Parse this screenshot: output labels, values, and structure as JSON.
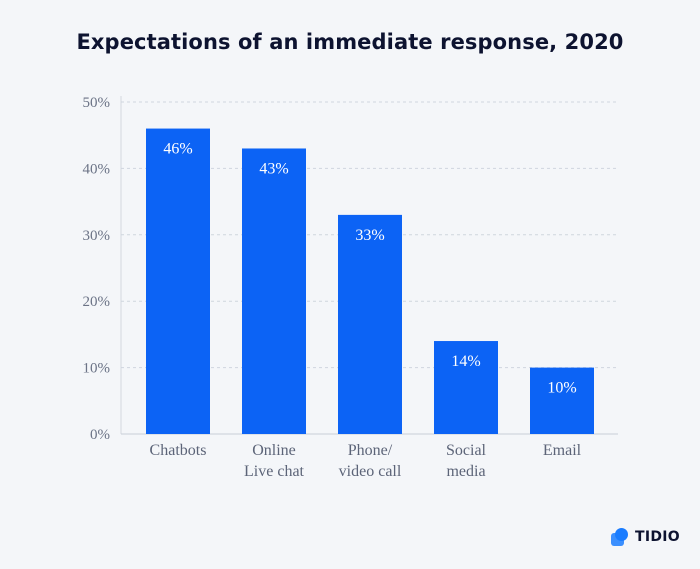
{
  "brand": {
    "name": "TIDIO",
    "logo_color": "#1a7cff"
  },
  "chart_data": {
    "type": "bar",
    "title": "Expectations of an immediate response, 2020",
    "categories": [
      [
        "Chatbots"
      ],
      [
        "Online",
        "Live chat"
      ],
      [
        "Phone/",
        "video call"
      ],
      [
        "Social",
        "media"
      ],
      [
        "Email"
      ]
    ],
    "values": [
      46,
      43,
      33,
      14,
      10
    ],
    "value_labels": [
      "46%",
      "43%",
      "33%",
      "14%",
      "10%"
    ],
    "ylim": [
      0,
      50
    ],
    "yticks": [
      0,
      10,
      20,
      30,
      40,
      50
    ],
    "ytick_labels": [
      "0%",
      "10%",
      "20%",
      "30%",
      "40%",
      "50%"
    ],
    "xlabel": "",
    "ylabel": "",
    "grid": true,
    "bar_color": "#0c63f5"
  }
}
